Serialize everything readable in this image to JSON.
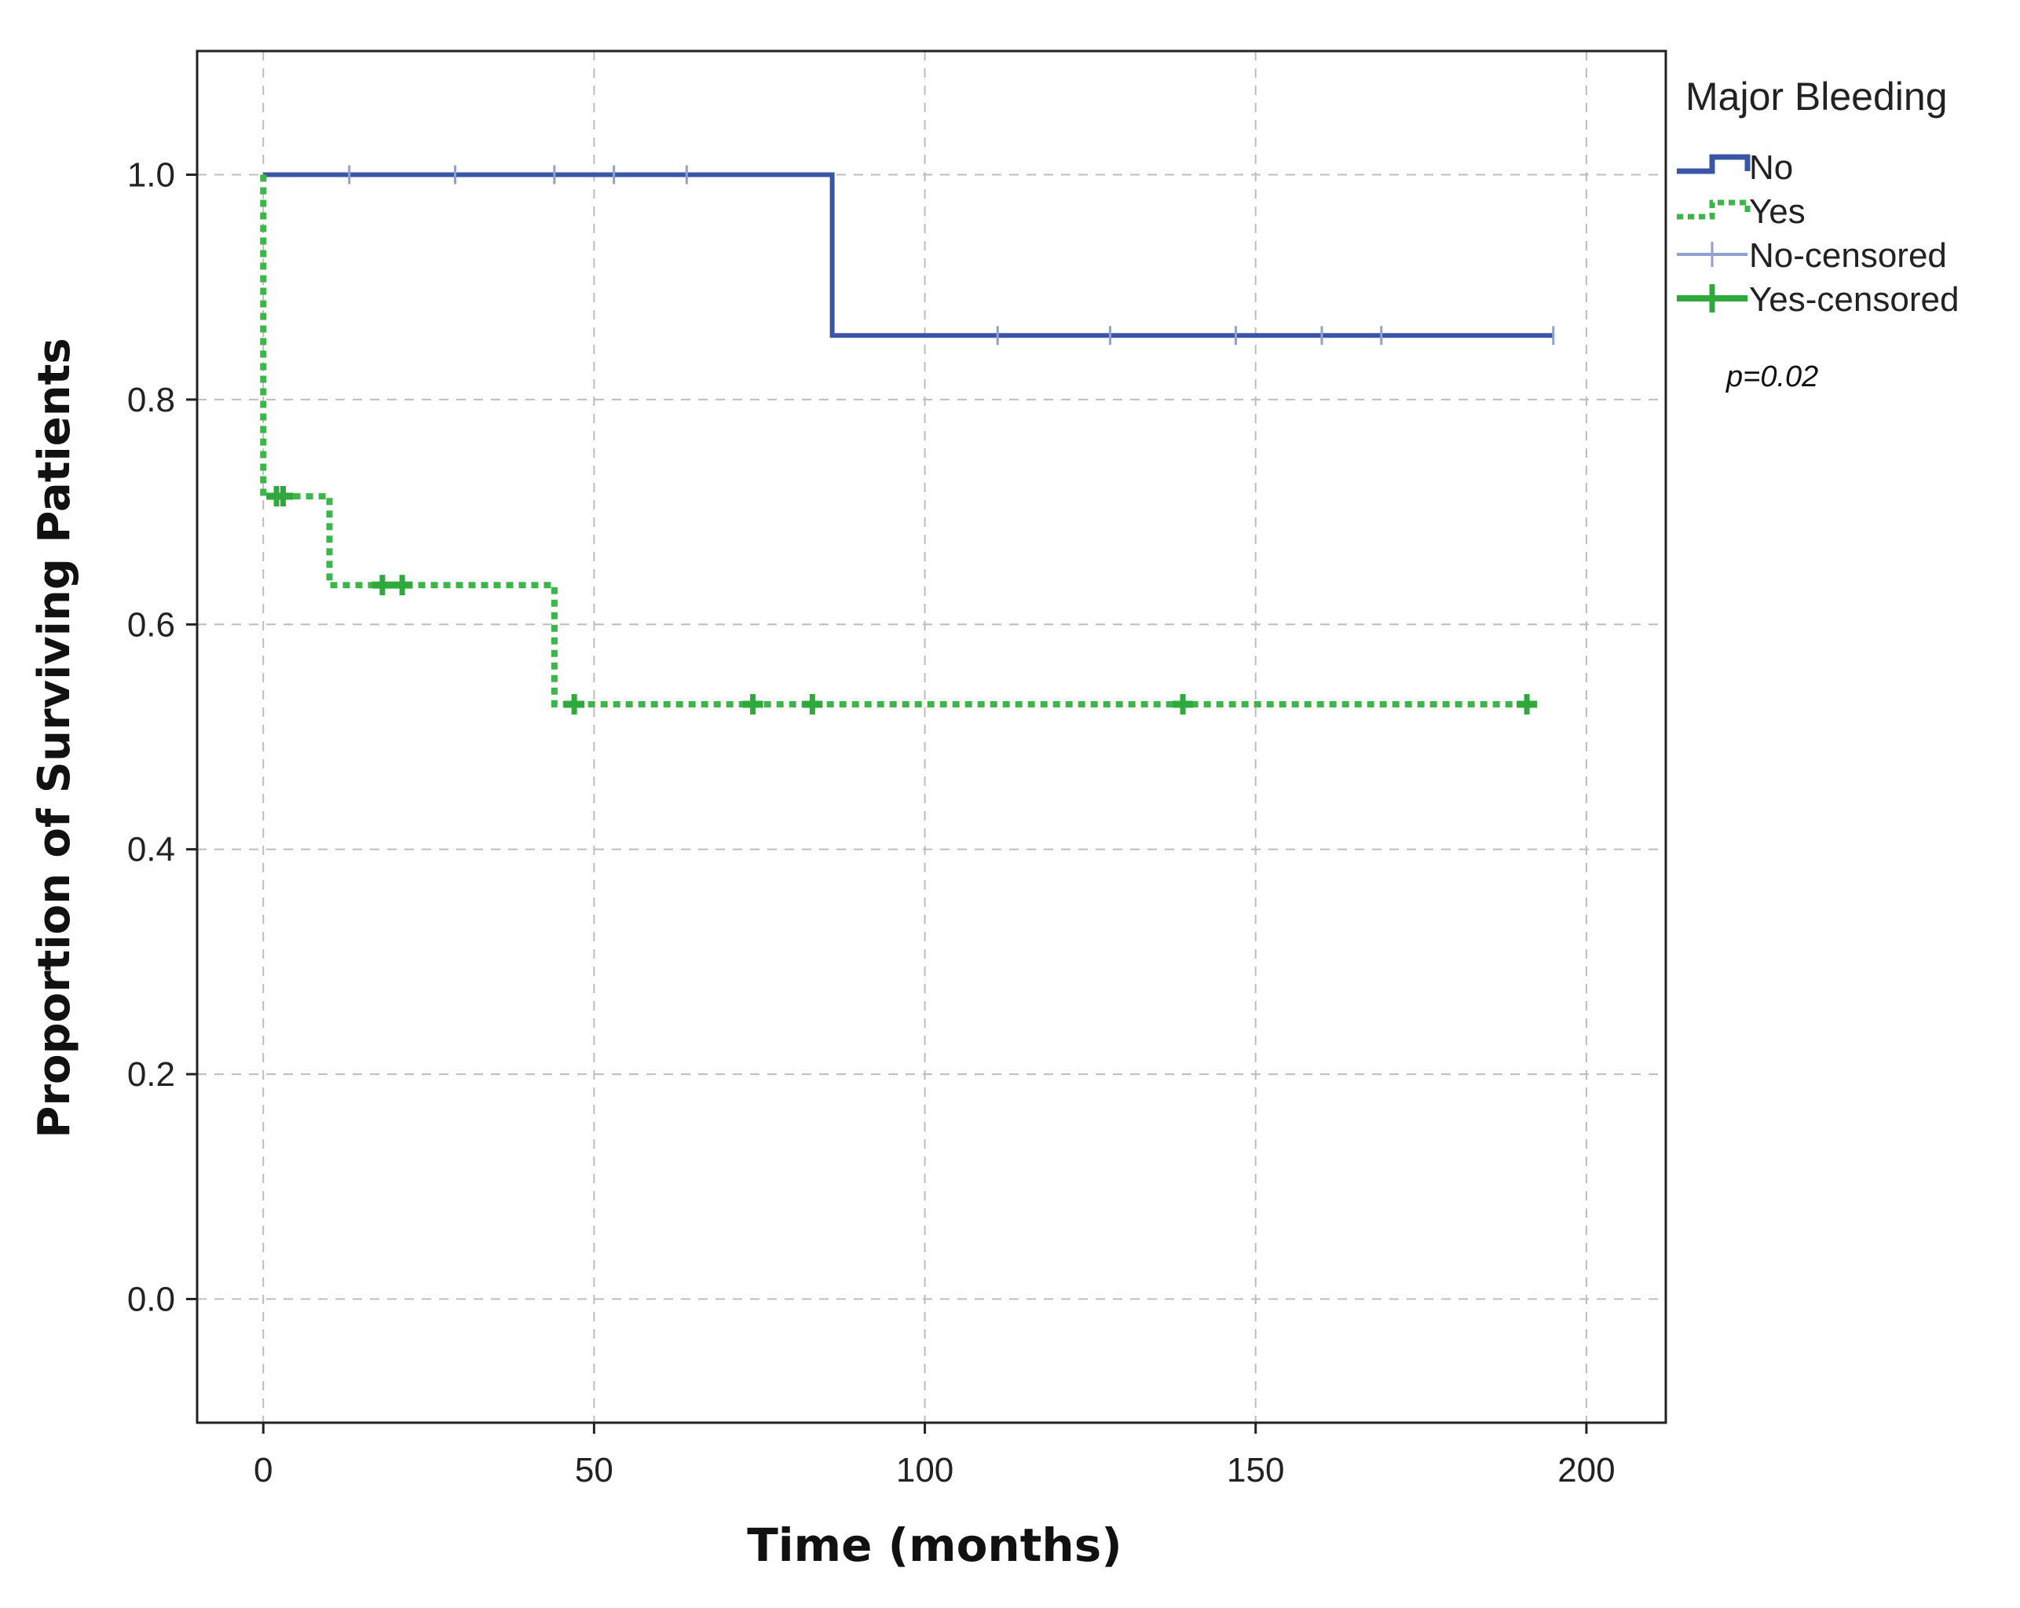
{
  "chart_data": {
    "type": "line",
    "subtype": "kaplan-meier survival (step)",
    "xlabel": "Time (months)",
    "ylabel": "Proportion of Surviving Patients",
    "xlim": [
      -10,
      212
    ],
    "ylim": [
      -0.11,
      1.11
    ],
    "xticks": [
      "0",
      "50",
      "100",
      "150",
      "200"
    ],
    "xtick_values": [
      0,
      50,
      100,
      150,
      200
    ],
    "yticks": [
      "0.0",
      "0.2",
      "0.4",
      "0.6",
      "0.8",
      "1.0"
    ],
    "ytick_values": [
      0.0,
      0.2,
      0.4,
      0.6,
      0.8,
      1.0
    ],
    "grid": true,
    "legend": {
      "title": "Major Bleeding",
      "placement": "right",
      "entries": [
        "No",
        "Yes",
        "No-censored",
        "Yes-censored"
      ]
    },
    "annotation": "p=0.02",
    "series": [
      {
        "name": "No",
        "color": "#3b55a6",
        "style": "solid",
        "steps": [
          [
            0,
            1.0
          ],
          [
            86,
            1.0
          ],
          [
            86,
            0.857
          ],
          [
            195,
            0.857
          ]
        ],
        "censored": [
          [
            13,
            1.0
          ],
          [
            29,
            1.0
          ],
          [
            44,
            1.0
          ],
          [
            53,
            1.0
          ],
          [
            64,
            1.0
          ],
          [
            111,
            0.857
          ],
          [
            128,
            0.857
          ],
          [
            147,
            0.857
          ],
          [
            160,
            0.857
          ],
          [
            169,
            0.857
          ],
          [
            195,
            0.857
          ]
        ]
      },
      {
        "name": "Yes",
        "color": "#3cb64a",
        "style": "dotted",
        "steps": [
          [
            0,
            1.0
          ],
          [
            0,
            0.714
          ],
          [
            10,
            0.714
          ],
          [
            10,
            0.635
          ],
          [
            44,
            0.635
          ],
          [
            44,
            0.529
          ],
          [
            192,
            0.529
          ]
        ],
        "censored": [
          [
            2,
            0.714
          ],
          [
            3,
            0.714
          ],
          [
            18,
            0.635
          ],
          [
            21,
            0.635
          ],
          [
            47,
            0.529
          ],
          [
            74,
            0.529
          ],
          [
            83,
            0.529
          ],
          [
            139,
            0.529
          ],
          [
            191,
            0.529
          ]
        ]
      }
    ]
  },
  "colors": {
    "no": "#3b55a6",
    "yes": "#3cb64a",
    "no_censored": "#8fa2cf",
    "yes_censored": "#2fa83c",
    "grid": "#bdbdbd",
    "frame": "#222222"
  }
}
